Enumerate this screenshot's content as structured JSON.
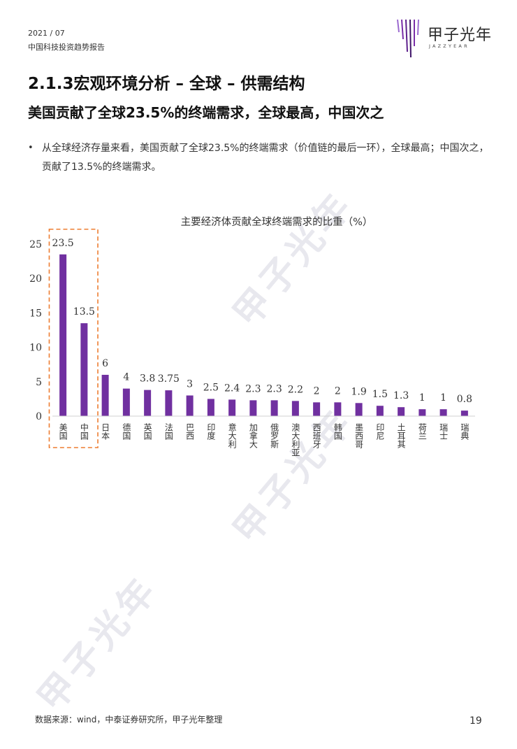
{
  "header": {
    "year": "2021 / 07",
    "report": "中国科技投资趋势报告"
  },
  "logo": {
    "name_cn": "甲子光年",
    "name_en": "JAZZYEAR",
    "color": "#7a2ea8"
  },
  "section_title": "2.1.3宏观环境分析 – 全球 – 供需结构",
  "headline": "美国贡献了全球23.5%的终端需求，全球最高，中国次之",
  "bullet_symbol": "•",
  "paragraph": "从全球经济存量来看，美国贡献了全球23.5%的终端需求（价值链的最后一环），全球最高；中国次之，贡献了13.5%的终端需求。",
  "chart_data": {
    "type": "bar",
    "title": "主要经济体贡献全球终端需求的比重（%）",
    "categories": [
      "美国",
      "中国",
      "日本",
      "德国",
      "英国",
      "法国",
      "巴西",
      "印度",
      "意大利",
      "加拿大",
      "俄罗斯",
      "澳大利亚",
      "西班牙",
      "韩国",
      "墨西哥",
      "印尼",
      "土耳其",
      "荷兰",
      "瑞士",
      "瑞典"
    ],
    "values": [
      23.5,
      13.5,
      6,
      4,
      3.8,
      3.75,
      3,
      2.5,
      2.4,
      2.3,
      2.3,
      2.2,
      2,
      2,
      1.9,
      1.5,
      1.3,
      1,
      1,
      0.8
    ],
    "data_labels": [
      "23.5",
      "13.5",
      "6",
      "4",
      "3.8",
      "3.75",
      "3",
      "2.5",
      "2.4",
      "2.3",
      "2.3",
      "2.2",
      "2",
      "2",
      "1.9",
      "1.5",
      "1.3",
      "1",
      "1",
      "0.8"
    ],
    "yticks": [
      "0",
      "5",
      "10",
      "15",
      "20",
      "25"
    ],
    "ylim": [
      0,
      25
    ],
    "bar_color": "#7030a0",
    "highlight_color": "#ed7d31",
    "highlighted_categories": [
      "美国",
      "中国"
    ],
    "grid": false,
    "xlabel": "",
    "ylabel": ""
  },
  "footer": {
    "source": "数据来源：wind，中泰证券研究所，甲子光年整理",
    "page": "19"
  },
  "watermarks": [
    "甲子光年",
    "甲子光年",
    "甲子光年"
  ]
}
